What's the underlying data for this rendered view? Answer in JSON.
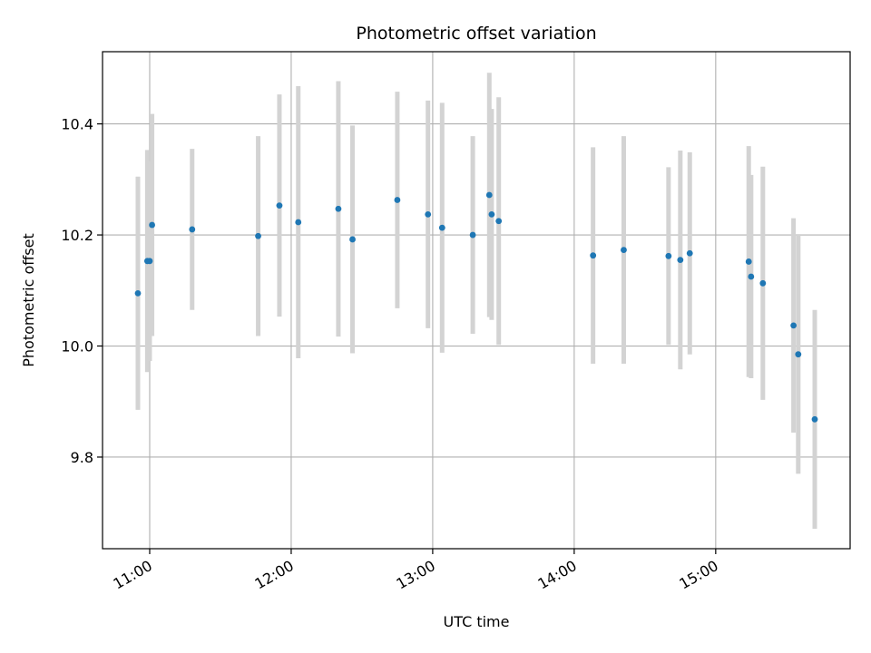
{
  "chart_data": {
    "type": "scatter",
    "title": "Photometric offset variation",
    "xlabel": "UTC time",
    "ylabel": "Photometric offset",
    "xlim": [
      "10:40",
      "15:57"
    ],
    "ylim": [
      9.635,
      10.53
    ],
    "x_ticks": [
      "11:00",
      "12:00",
      "13:00",
      "14:00",
      "15:00"
    ],
    "y_ticks": [
      9.8,
      10.0,
      10.2,
      10.4
    ],
    "y_tick_labels": [
      "9.8",
      "10.0",
      "10.2",
      "10.4"
    ],
    "grid": true,
    "errorbar_color": "#d3d3d3",
    "point_color": "#1f77b4",
    "points": [
      {
        "x": "10:55",
        "y": 10.095,
        "err": 0.21
      },
      {
        "x": "10:59",
        "y": 10.153,
        "err": 0.2
      },
      {
        "x": "11:00",
        "y": 10.153,
        "err": 0.18
      },
      {
        "x": "11:01",
        "y": 10.218,
        "err": 0.2
      },
      {
        "x": "11:18",
        "y": 10.21,
        "err": 0.145
      },
      {
        "x": "11:46",
        "y": 10.198,
        "err": 0.18
      },
      {
        "x": "11:55",
        "y": 10.253,
        "err": 0.2
      },
      {
        "x": "12:03",
        "y": 10.223,
        "err": 0.245
      },
      {
        "x": "12:20",
        "y": 10.247,
        "err": 0.23
      },
      {
        "x": "12:26",
        "y": 10.192,
        "err": 0.205
      },
      {
        "x": "12:45",
        "y": 10.263,
        "err": 0.195
      },
      {
        "x": "12:58",
        "y": 10.237,
        "err": 0.205
      },
      {
        "x": "13:04",
        "y": 10.213,
        "err": 0.225
      },
      {
        "x": "13:17",
        "y": 10.2,
        "err": 0.178
      },
      {
        "x": "13:24",
        "y": 10.272,
        "err": 0.22
      },
      {
        "x": "13:25",
        "y": 10.237,
        "err": 0.19
      },
      {
        "x": "13:28",
        "y": 10.225,
        "err": 0.223
      },
      {
        "x": "14:08",
        "y": 10.163,
        "err": 0.195
      },
      {
        "x": "14:21",
        "y": 10.173,
        "err": 0.205
      },
      {
        "x": "14:40",
        "y": 10.162,
        "err": 0.16
      },
      {
        "x": "14:45",
        "y": 10.155,
        "err": 0.197
      },
      {
        "x": "14:49",
        "y": 10.167,
        "err": 0.182
      },
      {
        "x": "15:14",
        "y": 10.152,
        "err": 0.208
      },
      {
        "x": "15:15",
        "y": 10.125,
        "err": 0.183
      },
      {
        "x": "15:20",
        "y": 10.113,
        "err": 0.21
      },
      {
        "x": "15:33",
        "y": 10.037,
        "err": 0.193
      },
      {
        "x": "15:35",
        "y": 9.985,
        "err": 0.215
      },
      {
        "x": "15:42",
        "y": 9.868,
        "err": 0.197
      }
    ]
  }
}
